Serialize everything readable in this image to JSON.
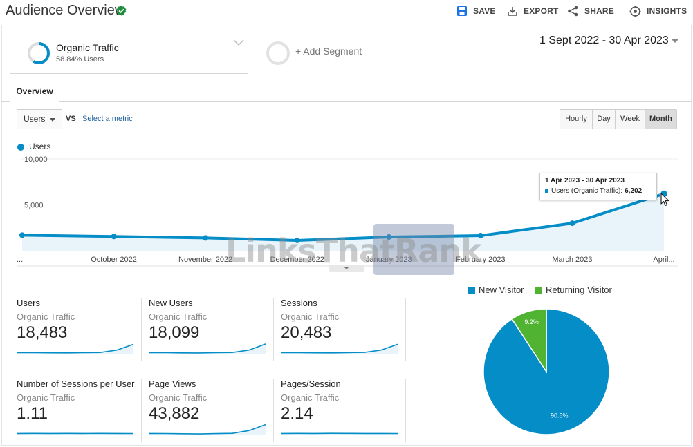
{
  "header": {
    "title": "Audience Overview",
    "save": "SAVE",
    "export": "EXPORT",
    "share": "SHARE",
    "insights": "INSIGHTS"
  },
  "segment": {
    "title": "Organic Traffic",
    "subtitle": "58.84% Users",
    "add_label": "+ Add Segment"
  },
  "date_range": "1 Sept 2022 - 30 Apr 2023",
  "tabs": {
    "overview": "Overview"
  },
  "controls": {
    "metric": "Users",
    "vs": "VS",
    "select_metric": "Select a metric",
    "granularity": [
      "Hourly",
      "Day",
      "Week",
      "Month"
    ],
    "active_granularity": "Month"
  },
  "legend": {
    "series": "Users"
  },
  "chart_data": {
    "type": "line",
    "series": [
      {
        "name": "Users",
        "color": "#058dc7",
        "values": [
          1700,
          1560,
          1400,
          1130,
          1500,
          1650,
          3000,
          6202
        ]
      }
    ],
    "x": [
      "Sept 2022",
      "October 2022",
      "November 2022",
      "December 2022",
      "January 2023",
      "February 2023",
      "March 2023",
      "April 2023"
    ],
    "x_tick_labels": [
      "...",
      "October 2022",
      "November 2022",
      "December 2022",
      "January 2023",
      "February 2023",
      "March 2023",
      "April..."
    ],
    "y_ticks": [
      "10,000",
      "5,000"
    ],
    "ylim": [
      0,
      10000
    ],
    "fill": true
  },
  "tooltip": {
    "title": "1 Apr 2023 - 30 Apr 2023",
    "label": "Users (Organic Traffic):",
    "value": "6,202"
  },
  "watermark": "LinksThatRank",
  "metrics": [
    {
      "name": "Users",
      "segment": "Organic Traffic",
      "value": "18,483",
      "spark": [
        1.0,
        0.98,
        0.93,
        0.9,
        0.98,
        1.05,
        1.8,
        3.6
      ]
    },
    {
      "name": "New Users",
      "segment": "Organic Traffic",
      "value": "18,099",
      "spark": [
        1.0,
        0.98,
        0.92,
        0.88,
        0.97,
        1.05,
        1.8,
        3.7
      ]
    },
    {
      "name": "Sessions",
      "segment": "Organic Traffic",
      "value": "20,483",
      "spark": [
        1.0,
        0.99,
        0.93,
        0.9,
        0.99,
        1.07,
        1.8,
        3.6
      ]
    },
    {
      "name": "Number of Sessions per User",
      "segment": "Organic Traffic",
      "value": "1.11",
      "spark": [
        1.0,
        1.01,
        1.0,
        1.02,
        1.0,
        1.01,
        0.99,
        0.98
      ]
    },
    {
      "name": "Page Views",
      "segment": "Organic Traffic",
      "value": "43,882",
      "spark": [
        1.0,
        0.97,
        0.9,
        0.85,
        0.95,
        1.05,
        1.9,
        3.8
      ]
    },
    {
      "name": "Pages/Session",
      "segment": "Organic Traffic",
      "value": "2.14",
      "spark": [
        1.0,
        1.01,
        0.99,
        1.03,
        1.01,
        1.0,
        0.99,
        0.98
      ]
    }
  ],
  "pie": {
    "legend": [
      {
        "name": "New Visitor",
        "color": "#058dc7"
      },
      {
        "name": "Returning Visitor",
        "color": "#50b432"
      }
    ],
    "chart_data": {
      "type": "pie",
      "labels": [
        "New Visitor",
        "Returning Visitor"
      ],
      "values": [
        90.8,
        9.2
      ],
      "value_labels": [
        "90.8%",
        "9.2%"
      ],
      "colors": [
        "#058dc7",
        "#50b432"
      ]
    }
  }
}
